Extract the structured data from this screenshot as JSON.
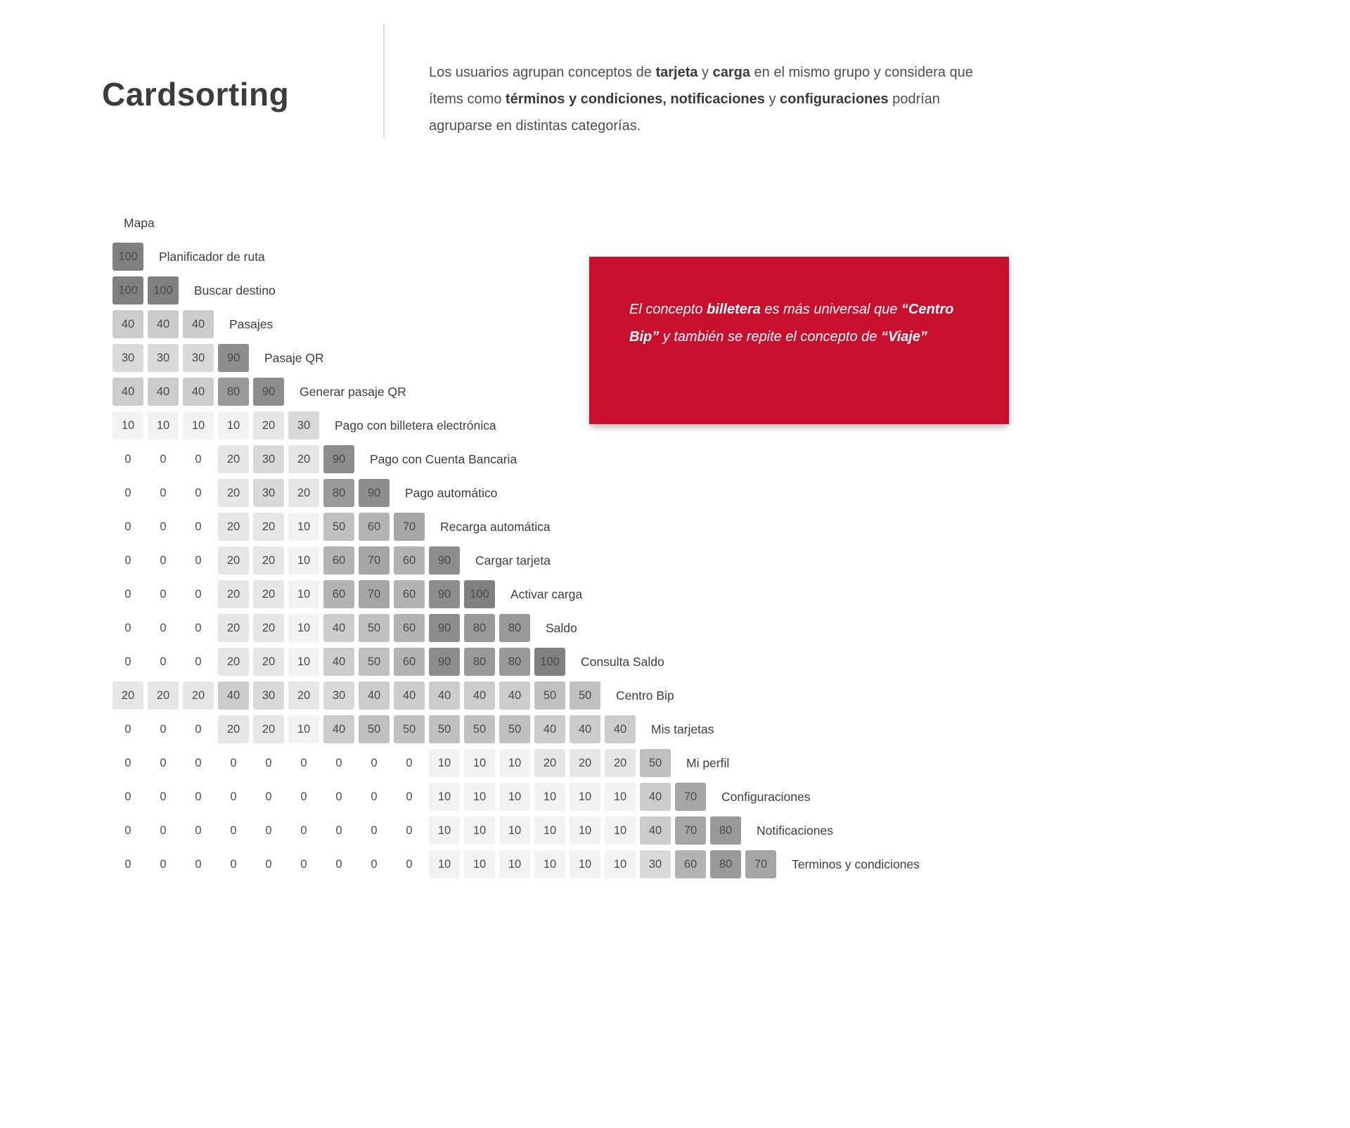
{
  "page": {
    "title": "Cardsorting",
    "background": "#ffffff"
  },
  "intro": {
    "segments": [
      {
        "text": "Los usuarios agrupan conceptos de ",
        "bold": false
      },
      {
        "text": "tarjeta",
        "bold": true
      },
      {
        "text": " y ",
        "bold": false
      },
      {
        "text": "carga",
        "bold": true
      },
      {
        "text": " en el mismo grupo y considera que ítems como ",
        "bold": false
      },
      {
        "text": "términos y condiciones, notificaciones",
        "bold": true
      },
      {
        "text": " y ",
        "bold": false
      },
      {
        "text": "configuraciones",
        "bold": true
      },
      {
        "text": " podrían agruparse en distintas categorías.",
        "bold": false
      }
    ]
  },
  "callout": {
    "background": "#c8102e",
    "text_color": "#ffffff",
    "segments": [
      {
        "text": "El concepto ",
        "bold": false
      },
      {
        "text": "billetera",
        "bold": true
      },
      {
        "text": "  es más universal que ",
        "bold": false
      },
      {
        "text": "“Centro Bip”",
        "bold": true
      },
      {
        "text": " y también se repite el concepto de ",
        "bold": false
      },
      {
        "text": "“Viaje”",
        "bold": true
      }
    ]
  },
  "chart_data": {
    "type": "heatmap",
    "title": "Cardsorting similarity matrix",
    "items": [
      "Mapa",
      "Planificador de ruta",
      "Buscar destino",
      "Pasajes",
      "Pasaje QR",
      "Generar pasaje QR",
      "Pago con billetera electrónica",
      "Pago con Cuenta Bancaria",
      "Pago automático",
      "Recarga automática",
      "Cargar tarjeta",
      "Activar carga",
      "Saldo",
      "Consulta Saldo",
      "Centro Bip",
      "Mis tarjetas",
      "Mi perfil",
      "Configuraciones",
      "Notificaciones",
      "Terminos y condiciones"
    ],
    "matrix": [
      [],
      [
        100
      ],
      [
        100,
        100
      ],
      [
        40,
        40,
        40
      ],
      [
        30,
        30,
        30,
        90
      ],
      [
        40,
        40,
        40,
        80,
        90
      ],
      [
        10,
        10,
        10,
        10,
        20,
        30
      ],
      [
        0,
        0,
        0,
        20,
        30,
        20,
        90
      ],
      [
        0,
        0,
        0,
        20,
        30,
        20,
        80,
        90
      ],
      [
        0,
        0,
        0,
        20,
        20,
        10,
        50,
        60,
        70
      ],
      [
        0,
        0,
        0,
        20,
        20,
        10,
        60,
        70,
        60,
        90
      ],
      [
        0,
        0,
        0,
        20,
        20,
        10,
        60,
        70,
        60,
        90,
        100
      ],
      [
        0,
        0,
        0,
        20,
        20,
        10,
        40,
        50,
        60,
        90,
        80,
        80
      ],
      [
        0,
        0,
        0,
        20,
        20,
        10,
        40,
        50,
        60,
        90,
        80,
        80,
        100
      ],
      [
        20,
        20,
        20,
        40,
        30,
        20,
        30,
        40,
        40,
        40,
        40,
        40,
        50,
        50
      ],
      [
        0,
        0,
        0,
        20,
        20,
        10,
        40,
        50,
        50,
        50,
        50,
        50,
        40,
        40,
        40
      ],
      [
        0,
        0,
        0,
        0,
        0,
        0,
        0,
        0,
        0,
        10,
        10,
        10,
        20,
        20,
        20,
        50
      ],
      [
        0,
        0,
        0,
        0,
        0,
        0,
        0,
        0,
        0,
        10,
        10,
        10,
        10,
        10,
        10,
        40,
        70
      ],
      [
        0,
        0,
        0,
        0,
        0,
        0,
        0,
        0,
        0,
        10,
        10,
        10,
        10,
        10,
        10,
        40,
        70,
        80
      ],
      [
        0,
        0,
        0,
        0,
        0,
        0,
        0,
        0,
        0,
        10,
        10,
        10,
        10,
        10,
        10,
        30,
        60,
        80,
        70
      ]
    ],
    "value_range": [
      0,
      100
    ],
    "color_scale": {
      "min_color": "#ffffff",
      "max_color": "#808080"
    },
    "legend": "none",
    "grid": false
  }
}
